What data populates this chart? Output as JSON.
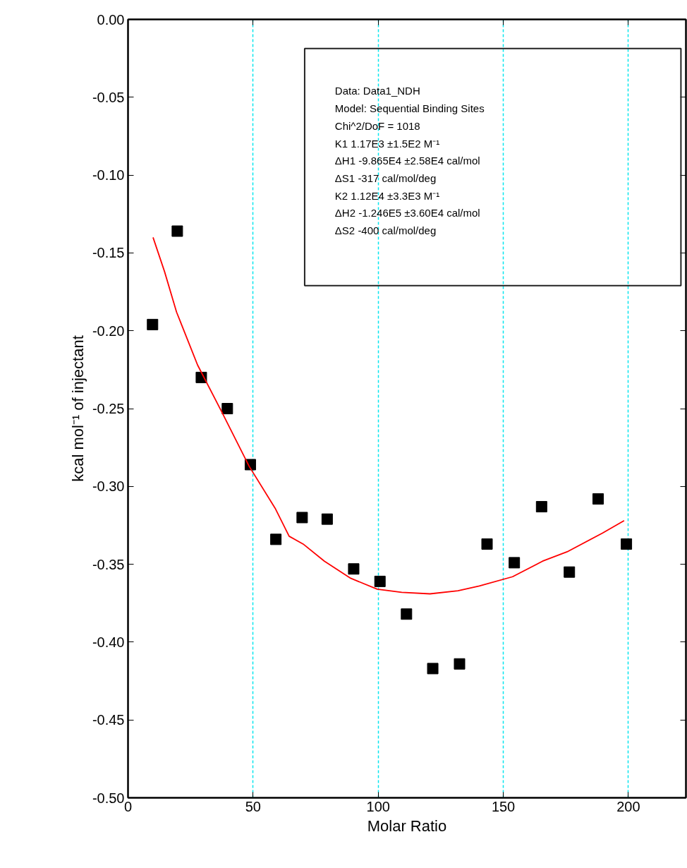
{
  "chart_data": {
    "type": "scatter",
    "xlabel": "Molar Ratio",
    "ylabel": "kcal mol⁻¹ of injectant",
    "xlim": [
      0,
      223
    ],
    "ylim": [
      -0.5,
      0
    ],
    "xticks": [
      0,
      50,
      100,
      150,
      200
    ],
    "yticks": [
      {
        "value": 0,
        "label": "0.00"
      },
      {
        "value": -0.05,
        "label": "-0.05"
      },
      {
        "value": -0.1,
        "label": "-0.10"
      },
      {
        "value": -0.15,
        "label": "-0.15"
      },
      {
        "value": -0.2,
        "label": "-0.20"
      },
      {
        "value": -0.25,
        "label": "-0.25"
      },
      {
        "value": -0.3,
        "label": "-0.30"
      },
      {
        "value": -0.35,
        "label": "-0.35"
      },
      {
        "value": -0.4,
        "label": "-0.40"
      },
      {
        "value": -0.45,
        "label": "-0.45"
      },
      {
        "value": -0.5,
        "label": "-0.50"
      }
    ],
    "grid": "x",
    "marker": "square",
    "series": [
      {
        "color": "#000000",
        "x": [
          9.8,
          19.7,
          29.3,
          39.7,
          48.9,
          59.1,
          69.6,
          79.6,
          90.2,
          100.7,
          111.3,
          121.8,
          132.5,
          143.5,
          154.4,
          165.3,
          176.4,
          187.9,
          199.2
        ],
        "values": [
          -0.196,
          -0.136,
          -0.23,
          -0.25,
          -0.286,
          -0.334,
          -0.32,
          -0.321,
          -0.353,
          -0.361,
          -0.382,
          -0.417,
          -0.414,
          -0.337,
          -0.349,
          -0.313,
          -0.355,
          -0.308,
          -0.337
        ]
      },
      {
        "type": "line",
        "color": "#ff0000",
        "marker": "none",
        "line_style": "solid",
        "x": [
          10.0,
          14.6,
          19.4,
          27.8,
          37.1,
          48.4,
          58.8,
          64.4,
          70,
          78.5,
          89,
          99.6,
          109.4,
          120.7,
          131.9,
          140.4,
          153.7,
          165.7,
          175.5,
          189.6,
          198.3
        ],
        "values": [
          -0.14,
          -0.162,
          -0.188,
          -0.222,
          -0.251,
          -0.287,
          -0.314,
          -0.332,
          -0.337,
          -0.348,
          -0.359,
          -0.366,
          -0.368,
          -0.369,
          -0.367,
          -0.364,
          -0.358,
          -0.348,
          -0.342,
          -0.33,
          -0.322
        ]
      }
    ],
    "annotations": [
      "Data: Data1_NDH",
      "Model: Sequential Binding Sites",
      "Chi^2/DoF = 1018",
      "K1 1.17E3 ±1.5E2 M⁻¹",
      "ΔH1 -9.865E4 ±2.58E4 cal/mol",
      "ΔS1 -317 cal/mol/deg",
      "K2 1.12E4 ±3.3E3 M⁻¹",
      "ΔH2 -1.246E5 ±3.60E4 cal/mol",
      "ΔS2 -400 cal/mol/deg"
    ]
  }
}
